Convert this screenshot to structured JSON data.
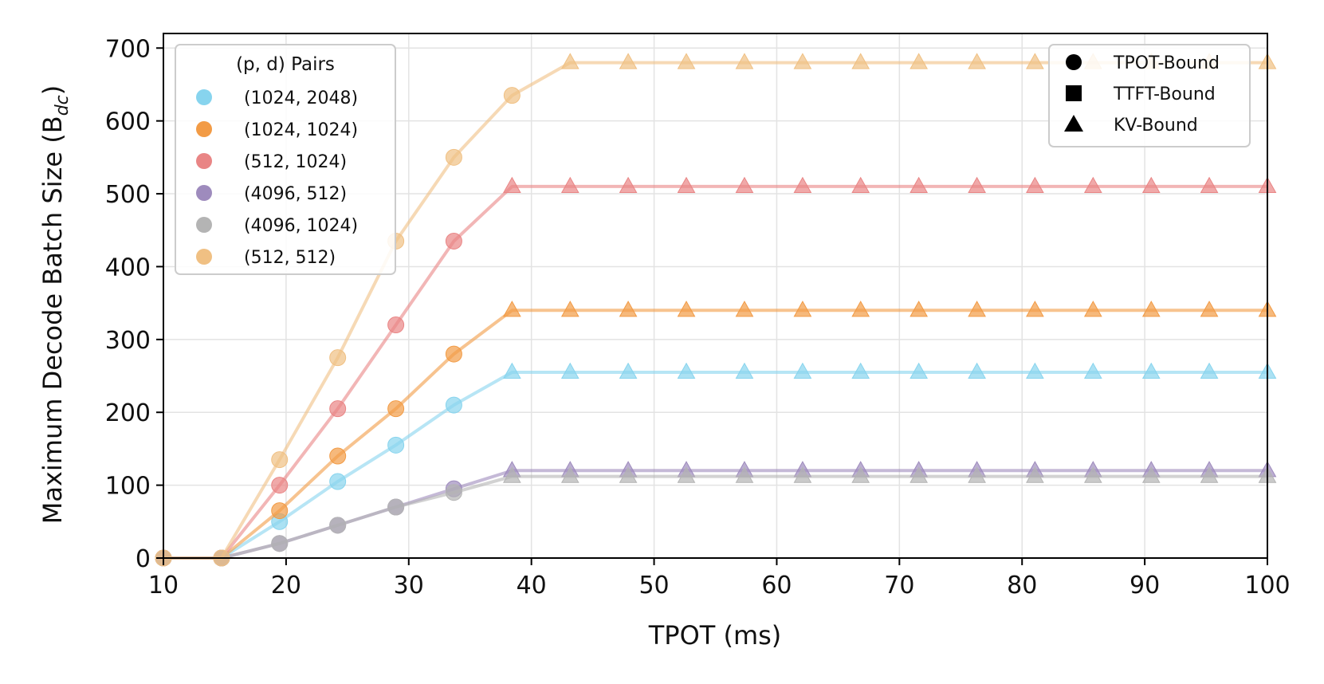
{
  "chart_data": {
    "type": "line",
    "xlabel": "TPOT (ms)",
    "ylabel": "Maximum Decode Batch Size (B",
    "ylabel_sub": "dc",
    "ylabel_close": ")",
    "xlim": [
      10,
      100
    ],
    "ylim": [
      0,
      720
    ],
    "x_ticks": [
      10,
      20,
      30,
      40,
      50,
      60,
      70,
      80,
      90,
      100
    ],
    "y_ticks": [
      0,
      100,
      200,
      300,
      400,
      500,
      600,
      700
    ],
    "grid": true,
    "x": [
      10.0,
      14.74,
      19.47,
      24.21,
      28.95,
      33.68,
      38.42,
      43.16,
      47.89,
      52.63,
      57.37,
      62.11,
      66.84,
      71.58,
      76.32,
      81.05,
      85.79,
      90.53,
      95.26,
      100.0
    ],
    "series_legend": {
      "title": "(p, d) Pairs",
      "placement": "top-left"
    },
    "marker_legend": {
      "placement": "top-right",
      "entries": [
        {
          "label": "TPOT-Bound",
          "marker": "circle"
        },
        {
          "label": "TTFT-Bound",
          "marker": "square"
        },
        {
          "label": "KV-Bound",
          "marker": "triangle"
        }
      ]
    },
    "series": [
      {
        "name": "(1024, 2048)",
        "color": "#87d4ee",
        "kv_from_index": 6,
        "values": [
          0,
          0,
          50,
          105,
          155,
          210,
          255,
          255,
          255,
          255,
          255,
          255,
          255,
          255,
          255,
          255,
          255,
          255,
          255,
          255
        ]
      },
      {
        "name": "(1024, 1024)",
        "color": "#f29b45",
        "kv_from_index": 6,
        "values": [
          0,
          0,
          65,
          140,
          205,
          280,
          340,
          340,
          340,
          340,
          340,
          340,
          340,
          340,
          340,
          340,
          340,
          340,
          340,
          340
        ]
      },
      {
        "name": "(512, 1024)",
        "color": "#e98585",
        "kv_from_index": 6,
        "values": [
          0,
          0,
          100,
          205,
          320,
          435,
          510,
          510,
          510,
          510,
          510,
          510,
          510,
          510,
          510,
          510,
          510,
          510,
          510,
          510
        ]
      },
      {
        "name": "(4096, 512)",
        "color": "#9e8bbd",
        "kv_from_index": 6,
        "values": [
          0,
          0,
          20,
          45,
          70,
          95,
          120,
          120,
          120,
          120,
          120,
          120,
          120,
          120,
          120,
          120,
          120,
          120,
          120,
          120
        ]
      },
      {
        "name": "(4096, 1024)",
        "color": "#b4b4b4",
        "kv_from_index": 6,
        "values": [
          0,
          0,
          20,
          45,
          70,
          90,
          112,
          112,
          112,
          112,
          112,
          112,
          112,
          112,
          112,
          112,
          112,
          112,
          112,
          112
        ]
      },
      {
        "name": "(512, 512)",
        "color": "#f0c083",
        "kv_from_index": 7,
        "values": [
          0,
          0,
          135,
          275,
          435,
          550,
          635,
          680,
          680,
          680,
          680,
          680,
          680,
          680,
          680,
          680,
          680,
          680,
          680,
          680
        ]
      }
    ]
  }
}
